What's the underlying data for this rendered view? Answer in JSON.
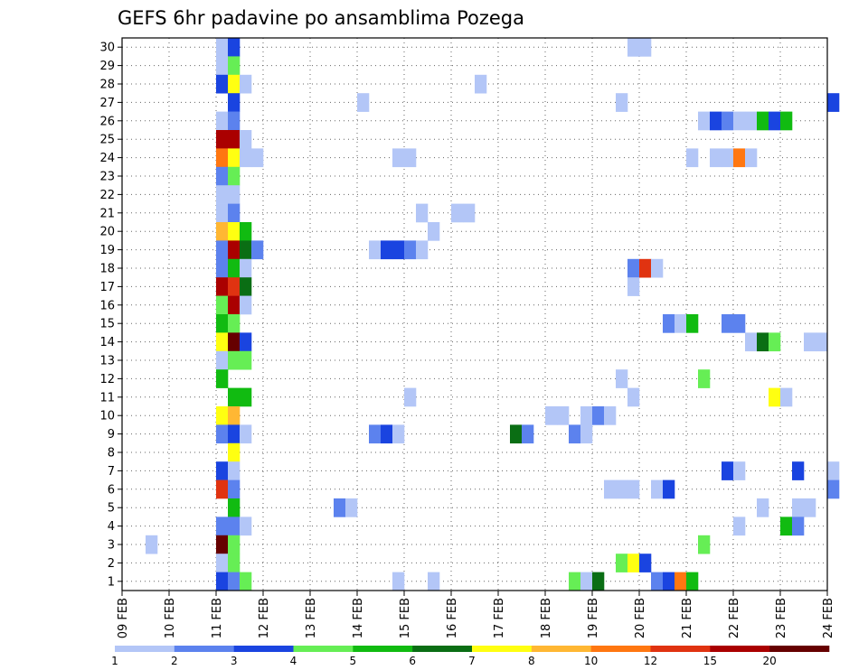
{
  "chart_data": {
    "type": "heatmap",
    "title": "GEFS 6hr padavine po ansamblima Pozega",
    "xlabel": "",
    "ylabel": "",
    "x_tick_labels": [
      "09 FEB",
      "10 FEB",
      "11 FEB",
      "12 FEB",
      "13 FEB",
      "14 FEB",
      "15 FEB",
      "16 FEB",
      "17 FEB",
      "18 FEB",
      "19 FEB",
      "20 FEB",
      "21 FEB",
      "22 FEB",
      "23 FEB",
      "24 FEB"
    ],
    "xlim_days": [
      9,
      24
    ],
    "y_tick_labels": [
      "1",
      "2",
      "3",
      "4",
      "5",
      "6",
      "7",
      "8",
      "9",
      "10",
      "11",
      "12",
      "13",
      "14",
      "15",
      "16",
      "17",
      "18",
      "19",
      "20",
      "21",
      "22",
      "23",
      "24",
      "25",
      "26",
      "27",
      "28",
      "29",
      "30"
    ],
    "ylim": [
      0,
      30
    ],
    "grid": true,
    "legend_position": "bottom",
    "legend": {
      "colors": [
        "#b3c6f7",
        "#5c82ee",
        "#1a44e0",
        "#66ee55",
        "#11bb11",
        "#0a6e14",
        "#ffff11",
        "#ffb733",
        "#ff7711",
        "#e03311",
        "#aa0000",
        "#660000"
      ],
      "labels": [
        "1",
        "2",
        "3",
        "4",
        "5",
        "6",
        "7",
        "8",
        "10",
        "12",
        "15",
        "20"
      ]
    },
    "cells": [
      {
        "m": 30,
        "t": 11.0,
        "l": 1
      },
      {
        "m": 30,
        "t": 11.25,
        "l": 3
      },
      {
        "m": 30,
        "t": 19.75,
        "l": 1
      },
      {
        "m": 30,
        "t": 20.0,
        "l": 1
      },
      {
        "m": 29,
        "t": 11.0,
        "l": 1
      },
      {
        "m": 29,
        "t": 11.25,
        "l": 4
      },
      {
        "m": 28,
        "t": 11.0,
        "l": 3
      },
      {
        "m": 28,
        "t": 11.25,
        "l": 7
      },
      {
        "m": 28,
        "t": 11.5,
        "l": 1
      },
      {
        "m": 28,
        "t": 16.5,
        "l": 1
      },
      {
        "m": 27,
        "t": 11.25,
        "l": 3
      },
      {
        "m": 27,
        "t": 14.0,
        "l": 1
      },
      {
        "m": 27,
        "t": 19.5,
        "l": 1
      },
      {
        "m": 27,
        "t": 24.0,
        "l": 3
      },
      {
        "m": 26,
        "t": 11.0,
        "l": 1
      },
      {
        "m": 26,
        "t": 11.25,
        "l": 2
      },
      {
        "m": 26,
        "t": 21.25,
        "l": 1
      },
      {
        "m": 26,
        "t": 21.5,
        "l": 3
      },
      {
        "m": 26,
        "t": 21.75,
        "l": 2
      },
      {
        "m": 26,
        "t": 22.0,
        "l": 1
      },
      {
        "m": 26,
        "t": 22.25,
        "l": 1
      },
      {
        "m": 26,
        "t": 22.5,
        "l": 5
      },
      {
        "m": 26,
        "t": 22.75,
        "l": 3
      },
      {
        "m": 26,
        "t": 23.0,
        "l": 5
      },
      {
        "m": 25,
        "t": 11.0,
        "l": 11
      },
      {
        "m": 25,
        "t": 11.25,
        "l": 11
      },
      {
        "m": 25,
        "t": 11.5,
        "l": 1
      },
      {
        "m": 24,
        "t": 11.0,
        "l": 9
      },
      {
        "m": 24,
        "t": 11.25,
        "l": 7
      },
      {
        "m": 24,
        "t": 11.5,
        "l": 1
      },
      {
        "m": 24,
        "t": 11.75,
        "l": 1
      },
      {
        "m": 24,
        "t": 14.75,
        "l": 1
      },
      {
        "m": 24,
        "t": 15.0,
        "l": 1
      },
      {
        "m": 24,
        "t": 21.0,
        "l": 1
      },
      {
        "m": 24,
        "t": 21.5,
        "l": 1
      },
      {
        "m": 24,
        "t": 21.75,
        "l": 1
      },
      {
        "m": 24,
        "t": 22.0,
        "l": 9
      },
      {
        "m": 24,
        "t": 22.25,
        "l": 1
      },
      {
        "m": 23,
        "t": 11.0,
        "l": 2
      },
      {
        "m": 23,
        "t": 11.25,
        "l": 4
      },
      {
        "m": 22,
        "t": 11.0,
        "l": 1
      },
      {
        "m": 22,
        "t": 11.25,
        "l": 1
      },
      {
        "m": 21,
        "t": 11.0,
        "l": 1
      },
      {
        "m": 21,
        "t": 11.25,
        "l": 2
      },
      {
        "m": 21,
        "t": 15.25,
        "l": 1
      },
      {
        "m": 21,
        "t": 16.0,
        "l": 1
      },
      {
        "m": 21,
        "t": 16.25,
        "l": 1
      },
      {
        "m": 20,
        "t": 11.0,
        "l": 8
      },
      {
        "m": 20,
        "t": 11.25,
        "l": 7
      },
      {
        "m": 20,
        "t": 11.5,
        "l": 5
      },
      {
        "m": 20,
        "t": 15.5,
        "l": 1
      },
      {
        "m": 19,
        "t": 11.0,
        "l": 2
      },
      {
        "m": 19,
        "t": 11.25,
        "l": 11
      },
      {
        "m": 19,
        "t": 11.5,
        "l": 6
      },
      {
        "m": 19,
        "t": 11.75,
        "l": 2
      },
      {
        "m": 19,
        "t": 14.25,
        "l": 1
      },
      {
        "m": 19,
        "t": 14.5,
        "l": 3
      },
      {
        "m": 19,
        "t": 14.75,
        "l": 3
      },
      {
        "m": 19,
        "t": 15.0,
        "l": 2
      },
      {
        "m": 19,
        "t": 15.25,
        "l": 1
      },
      {
        "m": 18,
        "t": 11.0,
        "l": 2
      },
      {
        "m": 18,
        "t": 11.25,
        "l": 5
      },
      {
        "m": 18,
        "t": 11.5,
        "l": 1
      },
      {
        "m": 18,
        "t": 19.75,
        "l": 2
      },
      {
        "m": 18,
        "t": 20.0,
        "l": 10
      },
      {
        "m": 18,
        "t": 20.25,
        "l": 1
      },
      {
        "m": 17,
        "t": 11.0,
        "l": 11
      },
      {
        "m": 17,
        "t": 11.25,
        "l": 10
      },
      {
        "m": 17,
        "t": 11.5,
        "l": 6
      },
      {
        "m": 17,
        "t": 19.75,
        "l": 1
      },
      {
        "m": 16,
        "t": 11.0,
        "l": 4
      },
      {
        "m": 16,
        "t": 11.25,
        "l": 11
      },
      {
        "m": 16,
        "t": 11.5,
        "l": 1
      },
      {
        "m": 15,
        "t": 11.0,
        "l": 5
      },
      {
        "m": 15,
        "t": 11.25,
        "l": 4
      },
      {
        "m": 15,
        "t": 20.5,
        "l": 2
      },
      {
        "m": 15,
        "t": 20.75,
        "l": 1
      },
      {
        "m": 15,
        "t": 21.0,
        "l": 5
      },
      {
        "m": 15,
        "t": 21.75,
        "l": 2
      },
      {
        "m": 15,
        "t": 22.0,
        "l": 2
      },
      {
        "m": 14,
        "t": 11.0,
        "l": 7
      },
      {
        "m": 14,
        "t": 11.25,
        "l": 12
      },
      {
        "m": 14,
        "t": 11.5,
        "l": 3
      },
      {
        "m": 14,
        "t": 22.25,
        "l": 1
      },
      {
        "m": 14,
        "t": 22.5,
        "l": 6
      },
      {
        "m": 14,
        "t": 22.75,
        "l": 4
      },
      {
        "m": 14,
        "t": 23.5,
        "l": 1
      },
      {
        "m": 14,
        "t": 23.75,
        "l": 1
      },
      {
        "m": 13,
        "t": 11.0,
        "l": 1
      },
      {
        "m": 13,
        "t": 11.25,
        "l": 4
      },
      {
        "m": 13,
        "t": 11.5,
        "l": 4
      },
      {
        "m": 12,
        "t": 11.0,
        "l": 5
      },
      {
        "m": 12,
        "t": 19.5,
        "l": 1
      },
      {
        "m": 12,
        "t": 21.25,
        "l": 4
      },
      {
        "m": 11,
        "t": 11.25,
        "l": 5
      },
      {
        "m": 11,
        "t": 11.5,
        "l": 5
      },
      {
        "m": 11,
        "t": 15.0,
        "l": 1
      },
      {
        "m": 11,
        "t": 19.75,
        "l": 1
      },
      {
        "m": 11,
        "t": 22.75,
        "l": 7
      },
      {
        "m": 11,
        "t": 23.0,
        "l": 1
      },
      {
        "m": 10,
        "t": 11.0,
        "l": 7
      },
      {
        "m": 10,
        "t": 11.25,
        "l": 8
      },
      {
        "m": 10,
        "t": 18.0,
        "l": 1
      },
      {
        "m": 10,
        "t": 18.25,
        "l": 1
      },
      {
        "m": 10,
        "t": 18.75,
        "l": 1
      },
      {
        "m": 10,
        "t": 19.0,
        "l": 2
      },
      {
        "m": 10,
        "t": 19.25,
        "l": 1
      },
      {
        "m": 9,
        "t": 11.0,
        "l": 2
      },
      {
        "m": 9,
        "t": 11.25,
        "l": 3
      },
      {
        "m": 9,
        "t": 11.5,
        "l": 1
      },
      {
        "m": 9,
        "t": 14.25,
        "l": 2
      },
      {
        "m": 9,
        "t": 14.5,
        "l": 3
      },
      {
        "m": 9,
        "t": 14.75,
        "l": 1
      },
      {
        "m": 9,
        "t": 17.25,
        "l": 6
      },
      {
        "m": 9,
        "t": 17.5,
        "l": 2
      },
      {
        "m": 9,
        "t": 18.5,
        "l": 2
      },
      {
        "m": 9,
        "t": 18.75,
        "l": 1
      },
      {
        "m": 8,
        "t": 11.25,
        "l": 7
      },
      {
        "m": 7,
        "t": 11.0,
        "l": 3
      },
      {
        "m": 7,
        "t": 11.25,
        "l": 1
      },
      {
        "m": 7,
        "t": 21.75,
        "l": 3
      },
      {
        "m": 7,
        "t": 22.0,
        "l": 1
      },
      {
        "m": 7,
        "t": 23.25,
        "l": 3
      },
      {
        "m": 7,
        "t": 24.0,
        "l": 1
      },
      {
        "m": 6,
        "t": 11.0,
        "l": 10
      },
      {
        "m": 6,
        "t": 11.25,
        "l": 2
      },
      {
        "m": 6,
        "t": 19.25,
        "l": 1
      },
      {
        "m": 6,
        "t": 19.5,
        "l": 1
      },
      {
        "m": 6,
        "t": 19.75,
        "l": 1
      },
      {
        "m": 6,
        "t": 20.25,
        "l": 1
      },
      {
        "m": 6,
        "t": 20.5,
        "l": 3
      },
      {
        "m": 6,
        "t": 24.0,
        "l": 2
      },
      {
        "m": 5,
        "t": 11.25,
        "l": 5
      },
      {
        "m": 5,
        "t": 13.5,
        "l": 2
      },
      {
        "m": 5,
        "t": 13.75,
        "l": 1
      },
      {
        "m": 5,
        "t": 22.5,
        "l": 1
      },
      {
        "m": 5,
        "t": 23.25,
        "l": 1
      },
      {
        "m": 5,
        "t": 23.5,
        "l": 1
      },
      {
        "m": 4,
        "t": 11.0,
        "l": 2
      },
      {
        "m": 4,
        "t": 11.25,
        "l": 2
      },
      {
        "m": 4,
        "t": 11.5,
        "l": 1
      },
      {
        "m": 4,
        "t": 22.0,
        "l": 1
      },
      {
        "m": 4,
        "t": 23.0,
        "l": 5
      },
      {
        "m": 4,
        "t": 23.25,
        "l": 2
      },
      {
        "m": 3,
        "t": 9.5,
        "l": 1
      },
      {
        "m": 3,
        "t": 11.0,
        "l": 12
      },
      {
        "m": 3,
        "t": 11.25,
        "l": 4
      },
      {
        "m": 3,
        "t": 21.25,
        "l": 4
      },
      {
        "m": 2,
        "t": 11.0,
        "l": 1
      },
      {
        "m": 2,
        "t": 11.25,
        "l": 4
      },
      {
        "m": 2,
        "t": 19.5,
        "l": 4
      },
      {
        "m": 2,
        "t": 19.75,
        "l": 7
      },
      {
        "m": 2,
        "t": 20.0,
        "l": 3
      },
      {
        "m": 1,
        "t": 11.0,
        "l": 3
      },
      {
        "m": 1,
        "t": 11.25,
        "l": 2
      },
      {
        "m": 1,
        "t": 11.5,
        "l": 4
      },
      {
        "m": 1,
        "t": 14.75,
        "l": 1
      },
      {
        "m": 1,
        "t": 15.5,
        "l": 1
      },
      {
        "m": 1,
        "t": 18.5,
        "l": 4
      },
      {
        "m": 1,
        "t": 18.75,
        "l": 1
      },
      {
        "m": 1,
        "t": 19.0,
        "l": 6
      },
      {
        "m": 1,
        "t": 20.25,
        "l": 2
      },
      {
        "m": 1,
        "t": 20.5,
        "l": 3
      },
      {
        "m": 1,
        "t": 20.75,
        "l": 9
      },
      {
        "m": 1,
        "t": 21.0,
        "l": 5
      }
    ]
  }
}
